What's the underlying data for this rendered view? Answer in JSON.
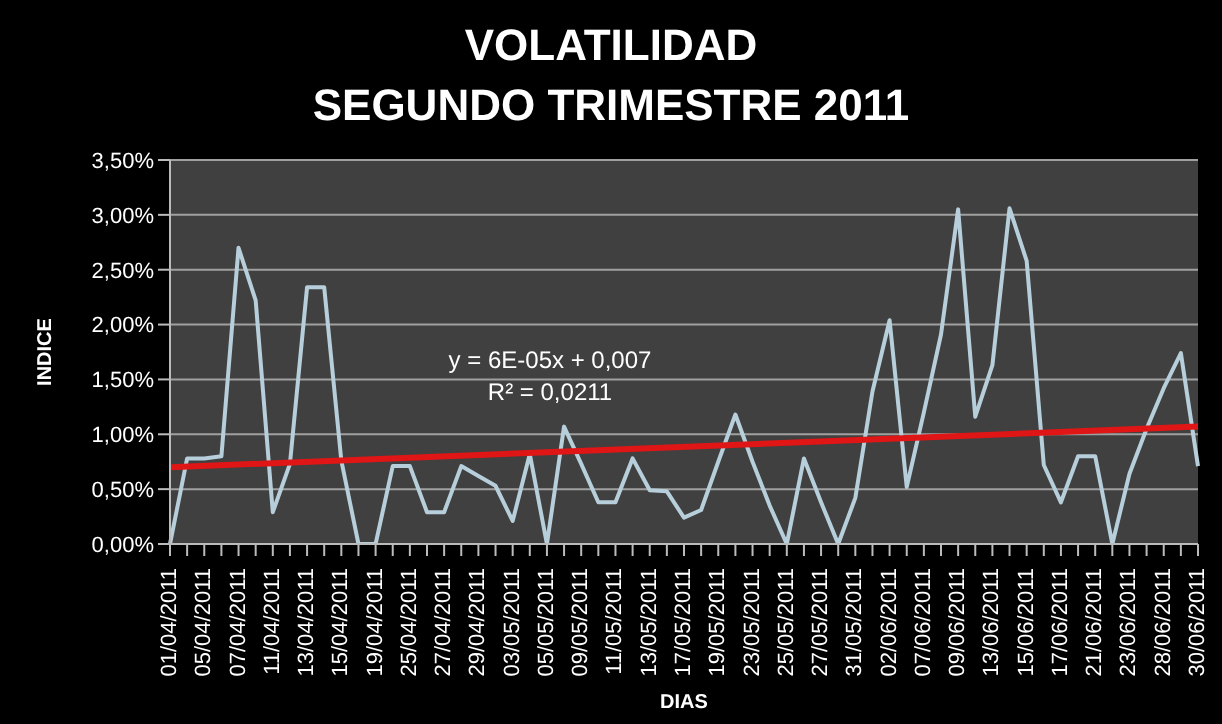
{
  "chart_data": {
    "type": "line",
    "title": "VOLATILIDAD",
    "subtitle": "SEGUNDO TRIMESTRE 2011",
    "xlabel": "DIAS",
    "ylabel": "INDICE",
    "annotations": [
      "y = 6E-05x + 0,007",
      "R² = 0,0211"
    ],
    "categories": [
      "01/04/2011",
      null,
      "05/04/2011",
      null,
      "07/04/2011",
      null,
      "11/04/2011",
      null,
      "13/04/2011",
      null,
      "15/04/2011",
      null,
      "19/04/2011",
      null,
      "25/04/2011",
      null,
      "27/04/2011",
      null,
      "29/04/2011",
      null,
      "03/05/2011",
      null,
      "05/05/2011",
      null,
      "09/05/2011",
      null,
      "11/05/2011",
      null,
      "13/05/2011",
      null,
      "17/05/2011",
      null,
      "19/05/2011",
      null,
      "23/05/2011",
      null,
      "25/05/2011",
      null,
      "27/05/2011",
      null,
      "31/05/2011",
      null,
      "02/06/2011",
      null,
      "07/06/2011",
      null,
      "09/06/2011",
      null,
      "13/06/2011",
      null,
      "15/06/2011",
      null,
      "17/06/2011",
      null,
      "21/06/2011",
      null,
      "23/06/2011",
      null,
      "28/06/2011",
      null,
      "30/06/2011"
    ],
    "series": [
      {
        "color": "#b7cfdb",
        "values": [
          0,
          0.78,
          0.78,
          0.8,
          2.7,
          2.22,
          0.29,
          0.73,
          2.34,
          2.34,
          0.76,
          0,
          0,
          0.71,
          0.71,
          0.29,
          0.29,
          0.71,
          0.62,
          0.53,
          0.21,
          0.82,
          0,
          1.07,
          0.73,
          0.38,
          0.38,
          0.78,
          0.49,
          0.48,
          0.24,
          0.31,
          0.75,
          1.18,
          0.75,
          0.35,
          0,
          0.78,
          0.38,
          0,
          0.42,
          1.39,
          2.04,
          0.52,
          1.2,
          1.91,
          3.05,
          1.16,
          1.63,
          3.06,
          2.58,
          0.72,
          0.38,
          0.8,
          0.8,
          0,
          0.64,
          1.05,
          1.42,
          1.74,
          0.71
        ]
      },
      {
        "type": "line",
        "color": "#e01515",
        "x": [
          "01/04/2011",
          "30/06/2011"
        ],
        "values": [
          0.7,
          1.07
        ]
      }
    ],
    "ylim": [
      0,
      3.5
    ],
    "yticks": [
      {
        "value": 0,
        "label": "0,00%"
      },
      {
        "value": 0.5,
        "label": "0,50%"
      },
      {
        "value": 1,
        "label": "1,00%"
      },
      {
        "value": 1.5,
        "label": "1,50%"
      },
      {
        "value": 2,
        "label": "2,00%"
      },
      {
        "value": 2.5,
        "label": "2,50%"
      },
      {
        "value": 3,
        "label": "3,00%"
      },
      {
        "value": 3.5,
        "label": "3,50%"
      }
    ],
    "grid": "y",
    "marker": "none",
    "line_style": "solid"
  }
}
